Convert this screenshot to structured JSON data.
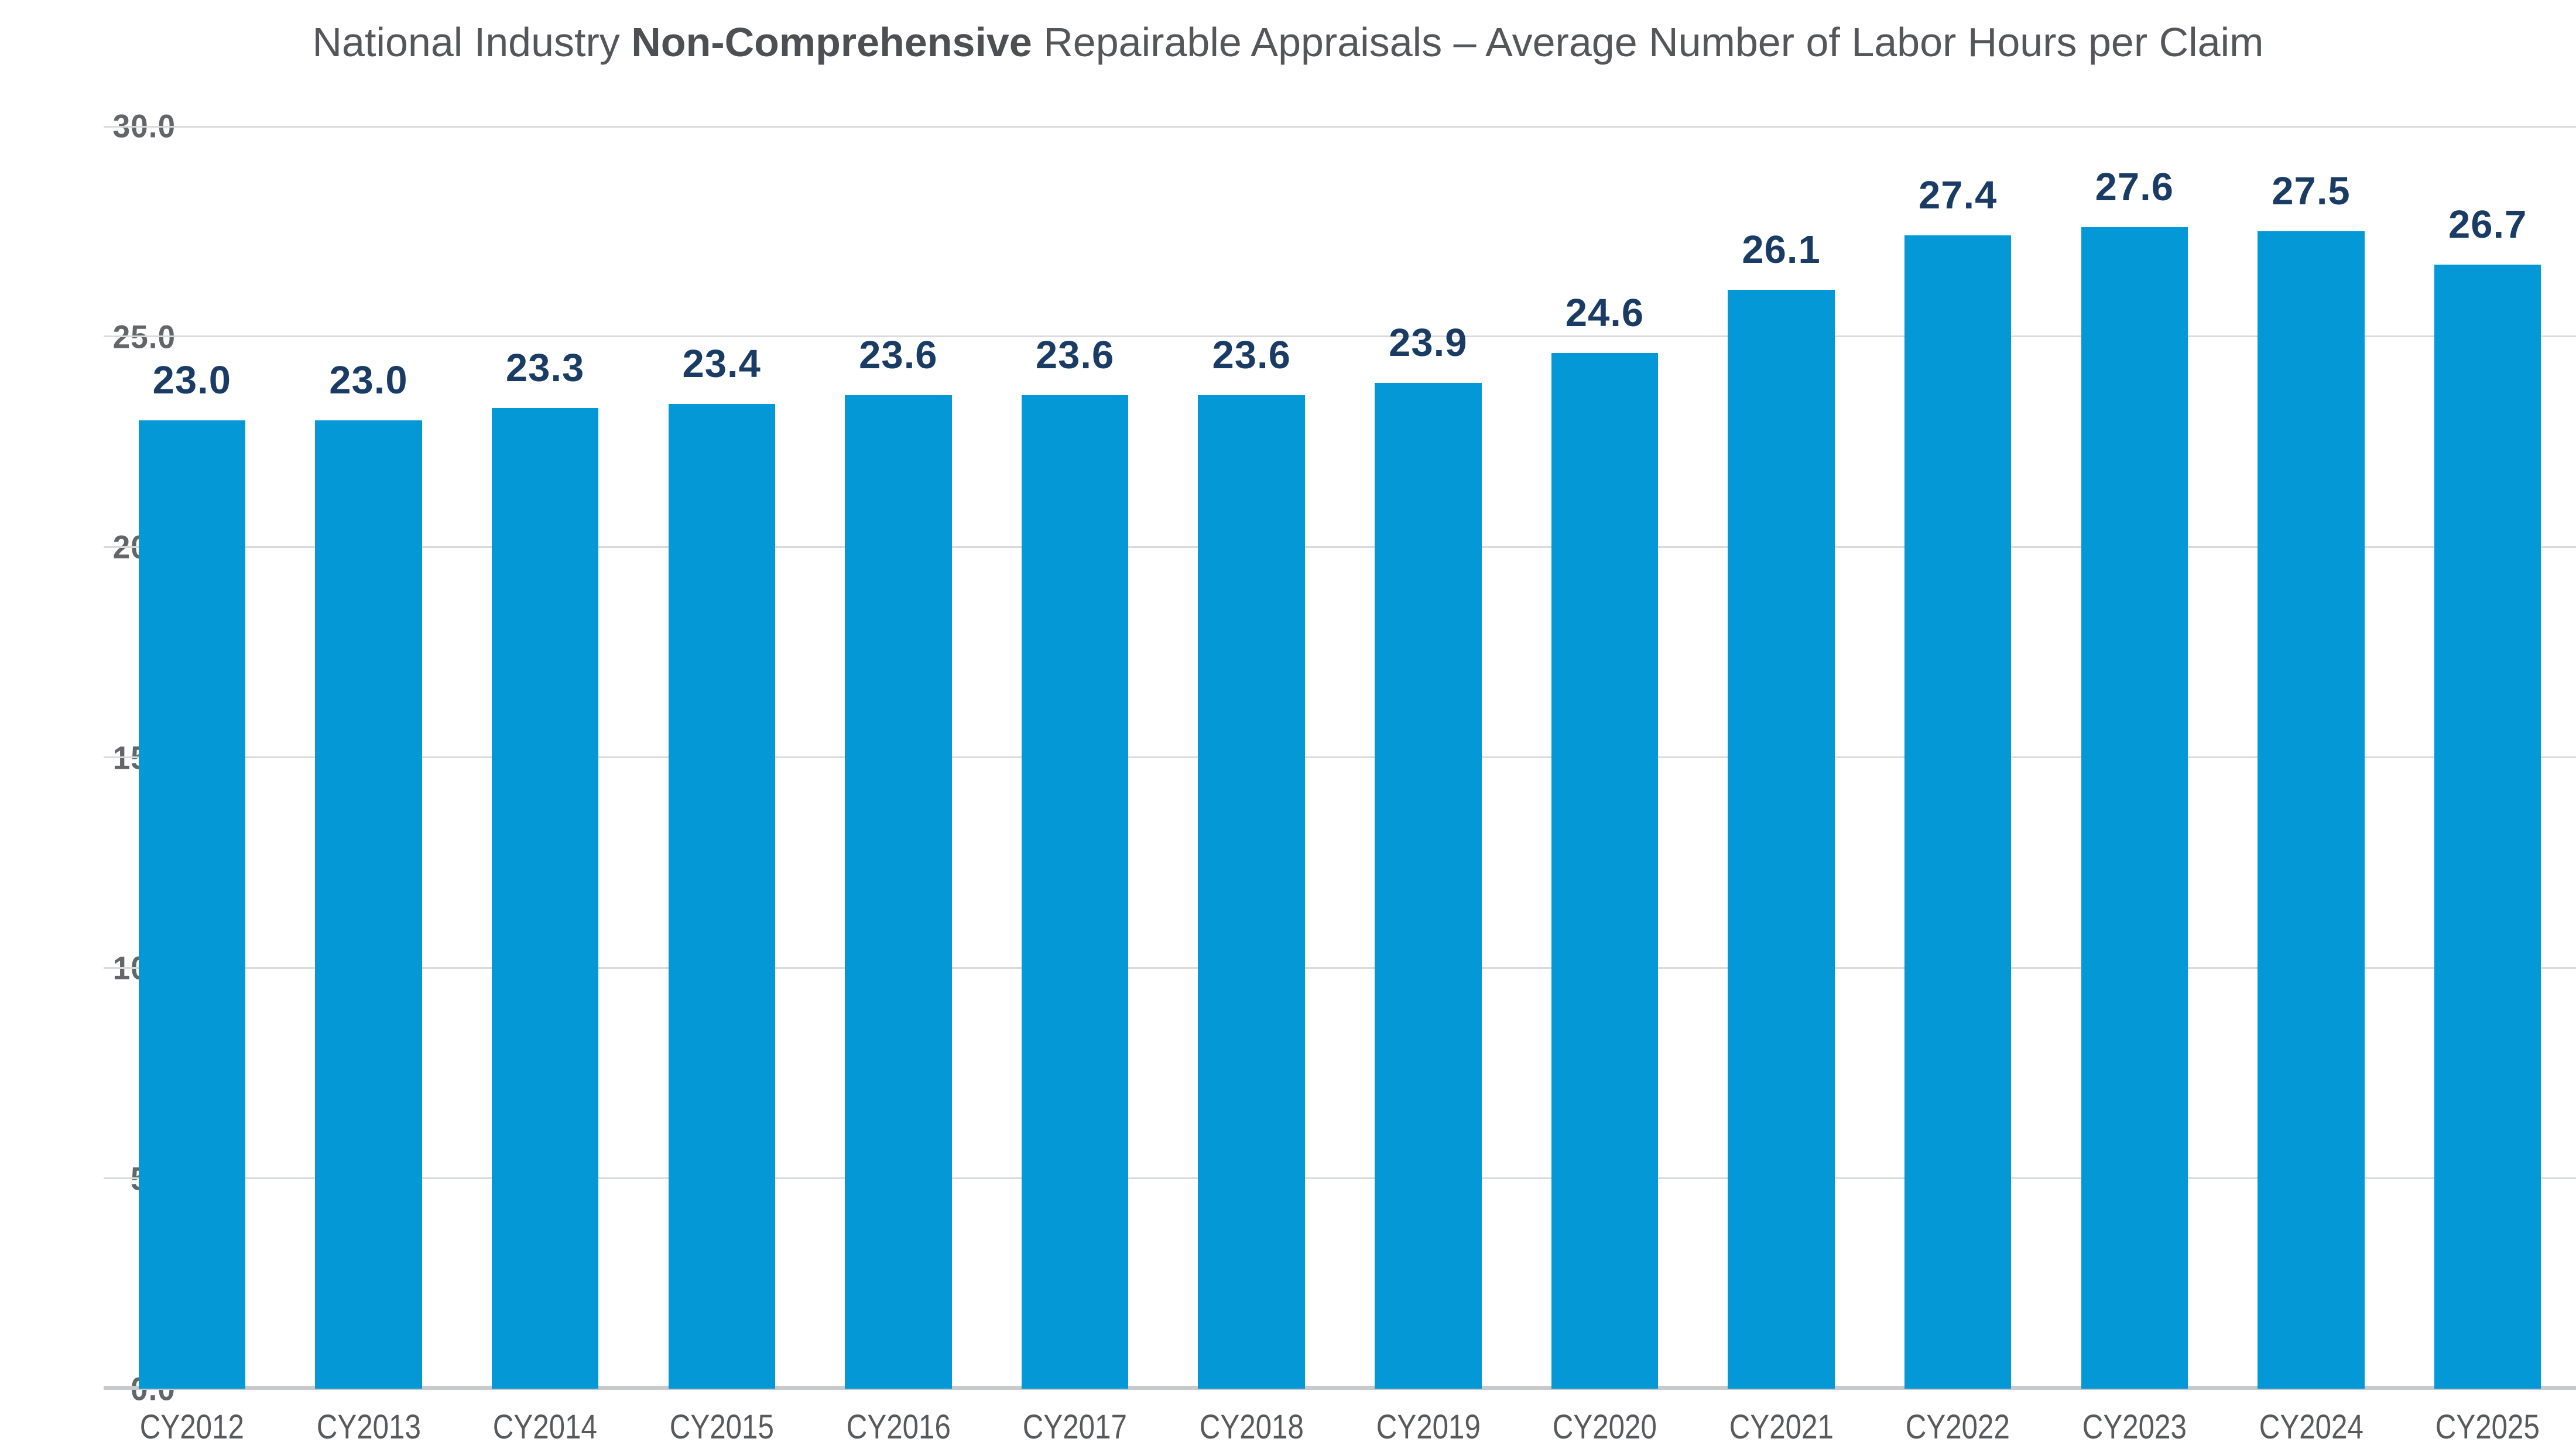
{
  "title": {
    "prefix": "National Industry ",
    "bold": "Non-Comprehensive",
    "suffix": " Repairable Appraisals – Average Number of Labor Hours per Claim"
  },
  "chart_data": {
    "type": "bar",
    "title": "National Industry Non-Comprehensive Repairable Appraisals – Average Number of Labor Hours per Claim",
    "categories": [
      "CY2012",
      "CY2013",
      "CY2014",
      "CY2015",
      "CY2016",
      "CY2017",
      "CY2018",
      "CY2019",
      "CY2020",
      "CY2021",
      "CY2022",
      "CY2023",
      "CY2024",
      "CY2025"
    ],
    "values": [
      23.0,
      23.0,
      23.3,
      23.4,
      23.6,
      23.6,
      23.6,
      23.9,
      24.6,
      26.1,
      27.4,
      27.6,
      27.5,
      26.7
    ],
    "value_labels": [
      "23.0",
      "23.0",
      "23.3",
      "23.4",
      "23.6",
      "23.6",
      "23.6",
      "23.9",
      "24.6",
      "26.1",
      "27.4",
      "27.6",
      "27.5",
      "26.7"
    ],
    "xlabel": "",
    "ylabel": "",
    "ylim": [
      0,
      30
    ],
    "yticks": [
      0,
      5,
      10,
      15,
      20,
      25,
      30
    ],
    "ytick_labels": [
      "0.0",
      "5.0",
      "10.0",
      "15.0",
      "20.0",
      "25.0",
      "30.0"
    ],
    "grid": "horizontal-only",
    "legend": "none",
    "bar_color": "#0499d6",
    "value_label_color": "#1a3c64",
    "gridline_color": "#d9dadb",
    "baseline_color": "#c8c9cb",
    "ytick_color": "#636569",
    "xtick_color": "#58595b",
    "title_color": "#55565a"
  }
}
